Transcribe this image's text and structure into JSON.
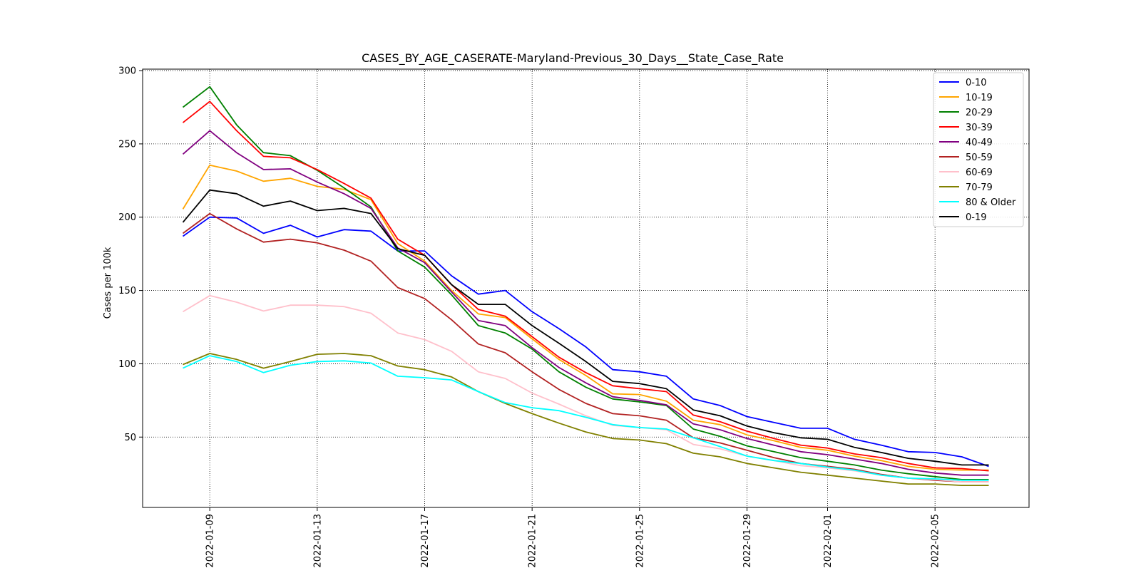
{
  "chart_data": {
    "type": "line",
    "title": "CASES_BY_AGE_CASERATE-Maryland-Previous_30_Days__State_Case_Rate",
    "xlabel": "",
    "ylabel": "Cases per 100k",
    "x": [
      "2022-01-08",
      "2022-01-09",
      "2022-01-10",
      "2022-01-11",
      "2022-01-12",
      "2022-01-13",
      "2022-01-14",
      "2022-01-15",
      "2022-01-16",
      "2022-01-17",
      "2022-01-18",
      "2022-01-19",
      "2022-01-20",
      "2022-01-21",
      "2022-01-22",
      "2022-01-23",
      "2022-01-24",
      "2022-01-25",
      "2022-01-26",
      "2022-01-27",
      "2022-01-28",
      "2022-01-29",
      "2022-01-30",
      "2022-01-31",
      "2022-02-01",
      "2022-02-02",
      "2022-02-03",
      "2022-02-04",
      "2022-02-05",
      "2022-02-06",
      "2022-02-07"
    ],
    "x_ticks": [
      "2022-01-09",
      "2022-01-13",
      "2022-01-17",
      "2022-01-21",
      "2022-01-25",
      "2022-01-29",
      "2022-02-01",
      "2022-02-05"
    ],
    "y_ticks": [
      50,
      100,
      150,
      200,
      250,
      300
    ],
    "ylim": [
      2,
      301
    ],
    "grid": true,
    "legend_position": "upper-right",
    "series": [
      {
        "name": "0-10",
        "color": "#0000ff",
        "values": [
          187,
          200,
          199.5,
          189,
          194.5,
          186.5,
          191.5,
          190.5,
          177,
          177,
          160,
          147.5,
          150,
          135.5,
          124,
          111.5,
          96,
          94.5,
          91.5,
          76,
          71.5,
          64,
          60,
          56,
          56,
          48.5,
          44.5,
          40,
          39.5,
          36.5,
          30
        ]
      },
      {
        "name": "10-19",
        "color": "#ffa500",
        "values": [
          205.5,
          235.5,
          231.5,
          224.5,
          226.5,
          221,
          219,
          212,
          182,
          170,
          150,
          134,
          131.5,
          117,
          103,
          92,
          79.5,
          79,
          74.5,
          61.5,
          58.5,
          51.5,
          47.5,
          43,
          41,
          37,
          34,
          30,
          28,
          27.5,
          27.5
        ]
      },
      {
        "name": "20-29",
        "color": "#008000",
        "values": [
          275,
          289,
          263,
          244,
          242,
          232,
          220,
          207,
          177,
          166,
          147,
          126,
          121,
          110,
          94.5,
          84,
          76,
          74,
          71.5,
          55.5,
          50.5,
          44,
          40,
          36,
          33.5,
          31,
          27.5,
          25,
          23,
          21,
          21
        ]
      },
      {
        "name": "30-39",
        "color": "#ff0000",
        "values": [
          264.5,
          279,
          259,
          241.5,
          240.5,
          232.5,
          223,
          213,
          185,
          174,
          154,
          137,
          132.5,
          118.5,
          104.5,
          94,
          85,
          83,
          81,
          65,
          60.5,
          54,
          49,
          44.5,
          42.5,
          38.5,
          36,
          32,
          29,
          28.5,
          27
        ]
      },
      {
        "name": "40-49",
        "color": "#800080",
        "values": [
          243,
          259,
          244,
          232.5,
          233,
          224,
          216,
          206,
          179,
          169,
          149,
          129.5,
          126,
          111,
          97.5,
          87,
          77.5,
          75,
          72,
          59,
          55,
          49,
          44.5,
          40,
          38,
          35,
          32,
          28,
          25.5,
          24,
          24
        ]
      },
      {
        "name": "50-59",
        "color": "#b22222",
        "values": [
          189,
          202.5,
          192,
          183,
          185,
          182.5,
          177.5,
          170,
          152,
          144.5,
          130,
          113.5,
          107.5,
          94.5,
          82.5,
          73,
          66,
          64.5,
          61.5,
          49.5,
          46,
          41,
          36,
          32,
          30,
          28,
          24.5,
          22,
          20.5,
          19.5,
          19.5
        ]
      },
      {
        "name": "60-69",
        "color": "#ffc0cb",
        "values": [
          135.5,
          146.5,
          142,
          136,
          140,
          140,
          139,
          134.5,
          121,
          116.5,
          108.5,
          94.5,
          90,
          80,
          72.5,
          64.5,
          58,
          56.5,
          55,
          45,
          42,
          37,
          34,
          30.5,
          29,
          27,
          24,
          22,
          21,
          19.5,
          19.5
        ]
      },
      {
        "name": "70-79",
        "color": "#808000",
        "values": [
          99.5,
          107,
          103,
          97,
          101.5,
          106.5,
          107,
          105.5,
          98.5,
          96,
          91,
          81,
          73,
          66,
          59.5,
          53.5,
          49,
          48,
          45.5,
          39,
          36.5,
          32,
          29,
          26,
          24,
          22,
          20,
          18,
          18,
          17,
          17
        ]
      },
      {
        "name": "80 & Older",
        "color": "#00ffff",
        "values": [
          97,
          105.5,
          101.5,
          94,
          99,
          101.5,
          102,
          100.5,
          91.5,
          90.5,
          89,
          81,
          73.5,
          70,
          68,
          63.5,
          58.5,
          56.5,
          55.5,
          49.5,
          43.5,
          37,
          34,
          32,
          29.5,
          27.5,
          24,
          22,
          21.5,
          20.5,
          20.5
        ]
      },
      {
        "name": "0-19",
        "color": "#000000",
        "values": [
          196.5,
          218.5,
          216,
          207.5,
          211,
          204.5,
          206,
          202.5,
          178.5,
          174,
          154,
          140.5,
          140.5,
          126,
          114,
          101.5,
          88,
          86.5,
          83,
          68.5,
          64.5,
          57.5,
          53,
          49.5,
          48.5,
          43,
          39.5,
          35.5,
          33.5,
          31,
          31
        ]
      }
    ]
  }
}
